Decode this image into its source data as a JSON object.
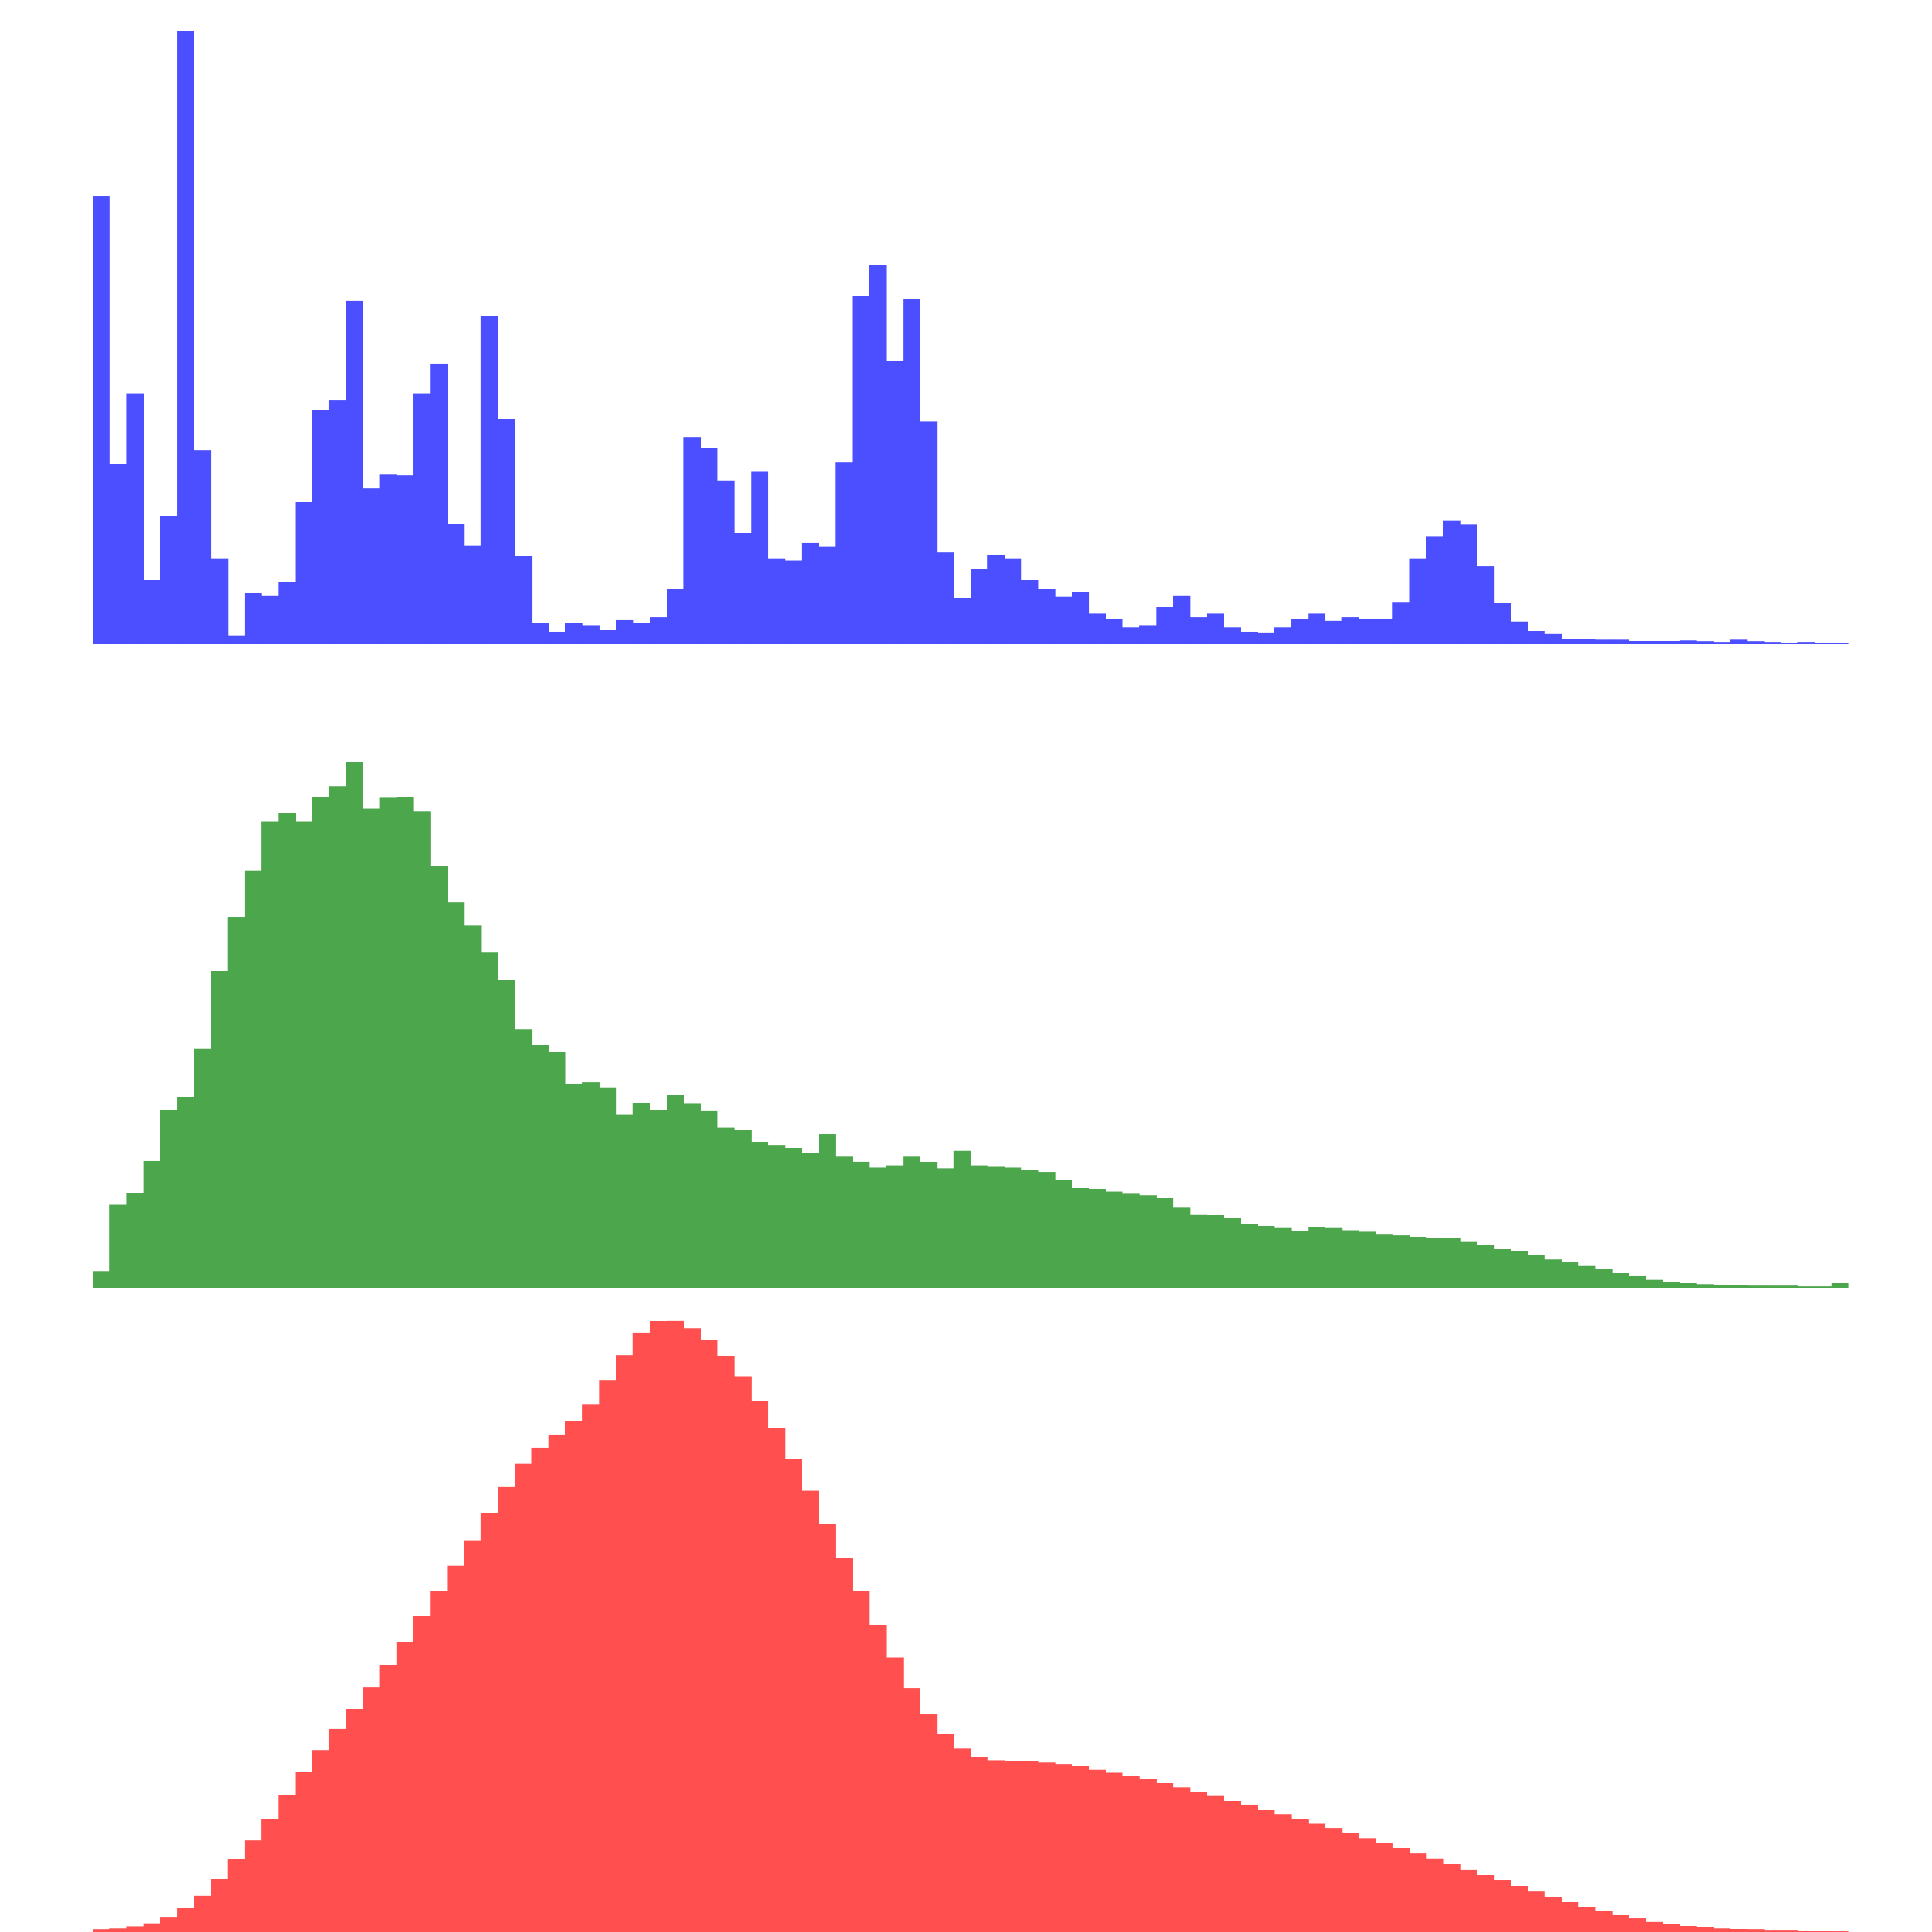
{
  "chart_data": [
    {
      "type": "bar",
      "series": [
        {
          "name": "",
          "color": "#4b4fff",
          "values": [
            0.73,
            0.294,
            0.408,
            0.104,
            0.208,
            1.0,
            0.316,
            0.139,
            0.014,
            0.083,
            0.079,
            0.101,
            0.232,
            0.382,
            0.398,
            0.56,
            0.254,
            0.277,
            0.275,
            0.408,
            0.457,
            0.196,
            0.16,
            0.535,
            0.367,
            0.143,
            0.034,
            0.02,
            0.034,
            0.03,
            0.023,
            0.04,
            0.034,
            0.044,
            0.09,
            0.337,
            0.32,
            0.266,
            0.181,
            0.281,
            0.139,
            0.136,
            0.165,
            0.159,
            0.296,
            0.568,
            0.618,
            0.462,
            0.562,
            0.363,
            0.15,
            0.075,
            0.122,
            0.145,
            0.139,
            0.104,
            0.09,
            0.077,
            0.085,
            0.05,
            0.041,
            0.027,
            0.03,
            0.06,
            0.079,
            0.044,
            0.05,
            0.027,
            0.02,
            0.018,
            0.027,
            0.041,
            0.05,
            0.038,
            0.044,
            0.041,
            0.041,
            0.068,
            0.139,
            0.175,
            0.201,
            0.195,
            0.127,
            0.067,
            0.036,
            0.021,
            0.017,
            0.008,
            0.008,
            0.007,
            0.007,
            0.005,
            0.005,
            0.005,
            0.006,
            0.004,
            0.003,
            0.007,
            0.004,
            0.003,
            0.002,
            0.003,
            0.002,
            0.002
          ]
        }
      ]
    },
    {
      "type": "bar",
      "series": [
        {
          "name": "",
          "color": "#4ca64c",
          "values": [
            0.027,
            0.136,
            0.155,
            0.207,
            0.291,
            0.311,
            0.39,
            0.517,
            0.605,
            0.681,
            0.761,
            0.775,
            0.761,
            0.801,
            0.818,
            0.858,
            0.782,
            0.8,
            0.801,
            0.777,
            0.688,
            0.629,
            0.591,
            0.547,
            0.503,
            0.422,
            0.396,
            0.385,
            0.333,
            0.336,
            0.327,
            0.283,
            0.302,
            0.29,
            0.315,
            0.301,
            0.289,
            0.262,
            0.258,
            0.238,
            0.233,
            0.229,
            0.22,
            0.251,
            0.215,
            0.206,
            0.197,
            0.2,
            0.215,
            0.205,
            0.195,
            0.224,
            0.2,
            0.198,
            0.197,
            0.193,
            0.189,
            0.176,
            0.163,
            0.161,
            0.157,
            0.154,
            0.151,
            0.147,
            0.132,
            0.12,
            0.119,
            0.114,
            0.105,
            0.101,
            0.098,
            0.093,
            0.099,
            0.098,
            0.094,
            0.092,
            0.088,
            0.086,
            0.083,
            0.081,
            0.081,
            0.076,
            0.07,
            0.064,
            0.06,
            0.054,
            0.047,
            0.042,
            0.036,
            0.031,
            0.025,
            0.02,
            0.014,
            0.01,
            0.008,
            0.006,
            0.005,
            0.005,
            0.004,
            0.004,
            0.004,
            0.003,
            0.003,
            0.008
          ]
        }
      ]
    },
    {
      "type": "bar",
      "series": [
        {
          "name": "",
          "color": "#ff4f4f",
          "values": [
            0.004,
            0.006,
            0.009,
            0.014,
            0.024,
            0.039,
            0.059,
            0.087,
            0.119,
            0.15,
            0.184,
            0.223,
            0.261,
            0.296,
            0.331,
            0.364,
            0.399,
            0.435,
            0.473,
            0.515,
            0.556,
            0.598,
            0.638,
            0.683,
            0.726,
            0.764,
            0.79,
            0.811,
            0.834,
            0.861,
            0.9,
            0.941,
            0.977,
            0.996,
            0.997,
            0.985,
            0.966,
            0.94,
            0.906,
            0.866,
            0.822,
            0.772,
            0.72,
            0.665,
            0.61,
            0.556,
            0.501,
            0.448,
            0.398,
            0.355,
            0.323,
            0.299,
            0.285,
            0.28,
            0.279,
            0.279,
            0.277,
            0.274,
            0.27,
            0.265,
            0.26,
            0.255,
            0.249,
            0.243,
            0.236,
            0.229,
            0.222,
            0.214,
            0.207,
            0.199,
            0.192,
            0.184,
            0.177,
            0.169,
            0.161,
            0.153,
            0.145,
            0.137,
            0.128,
            0.12,
            0.111,
            0.102,
            0.093,
            0.084,
            0.075,
            0.066,
            0.057,
            0.049,
            0.041,
            0.034,
            0.028,
            0.022,
            0.017,
            0.013,
            0.01,
            0.008,
            0.006,
            0.005,
            0.004,
            0.003,
            0.003,
            0.002,
            0.002,
            0.001
          ]
        }
      ]
    }
  ]
}
